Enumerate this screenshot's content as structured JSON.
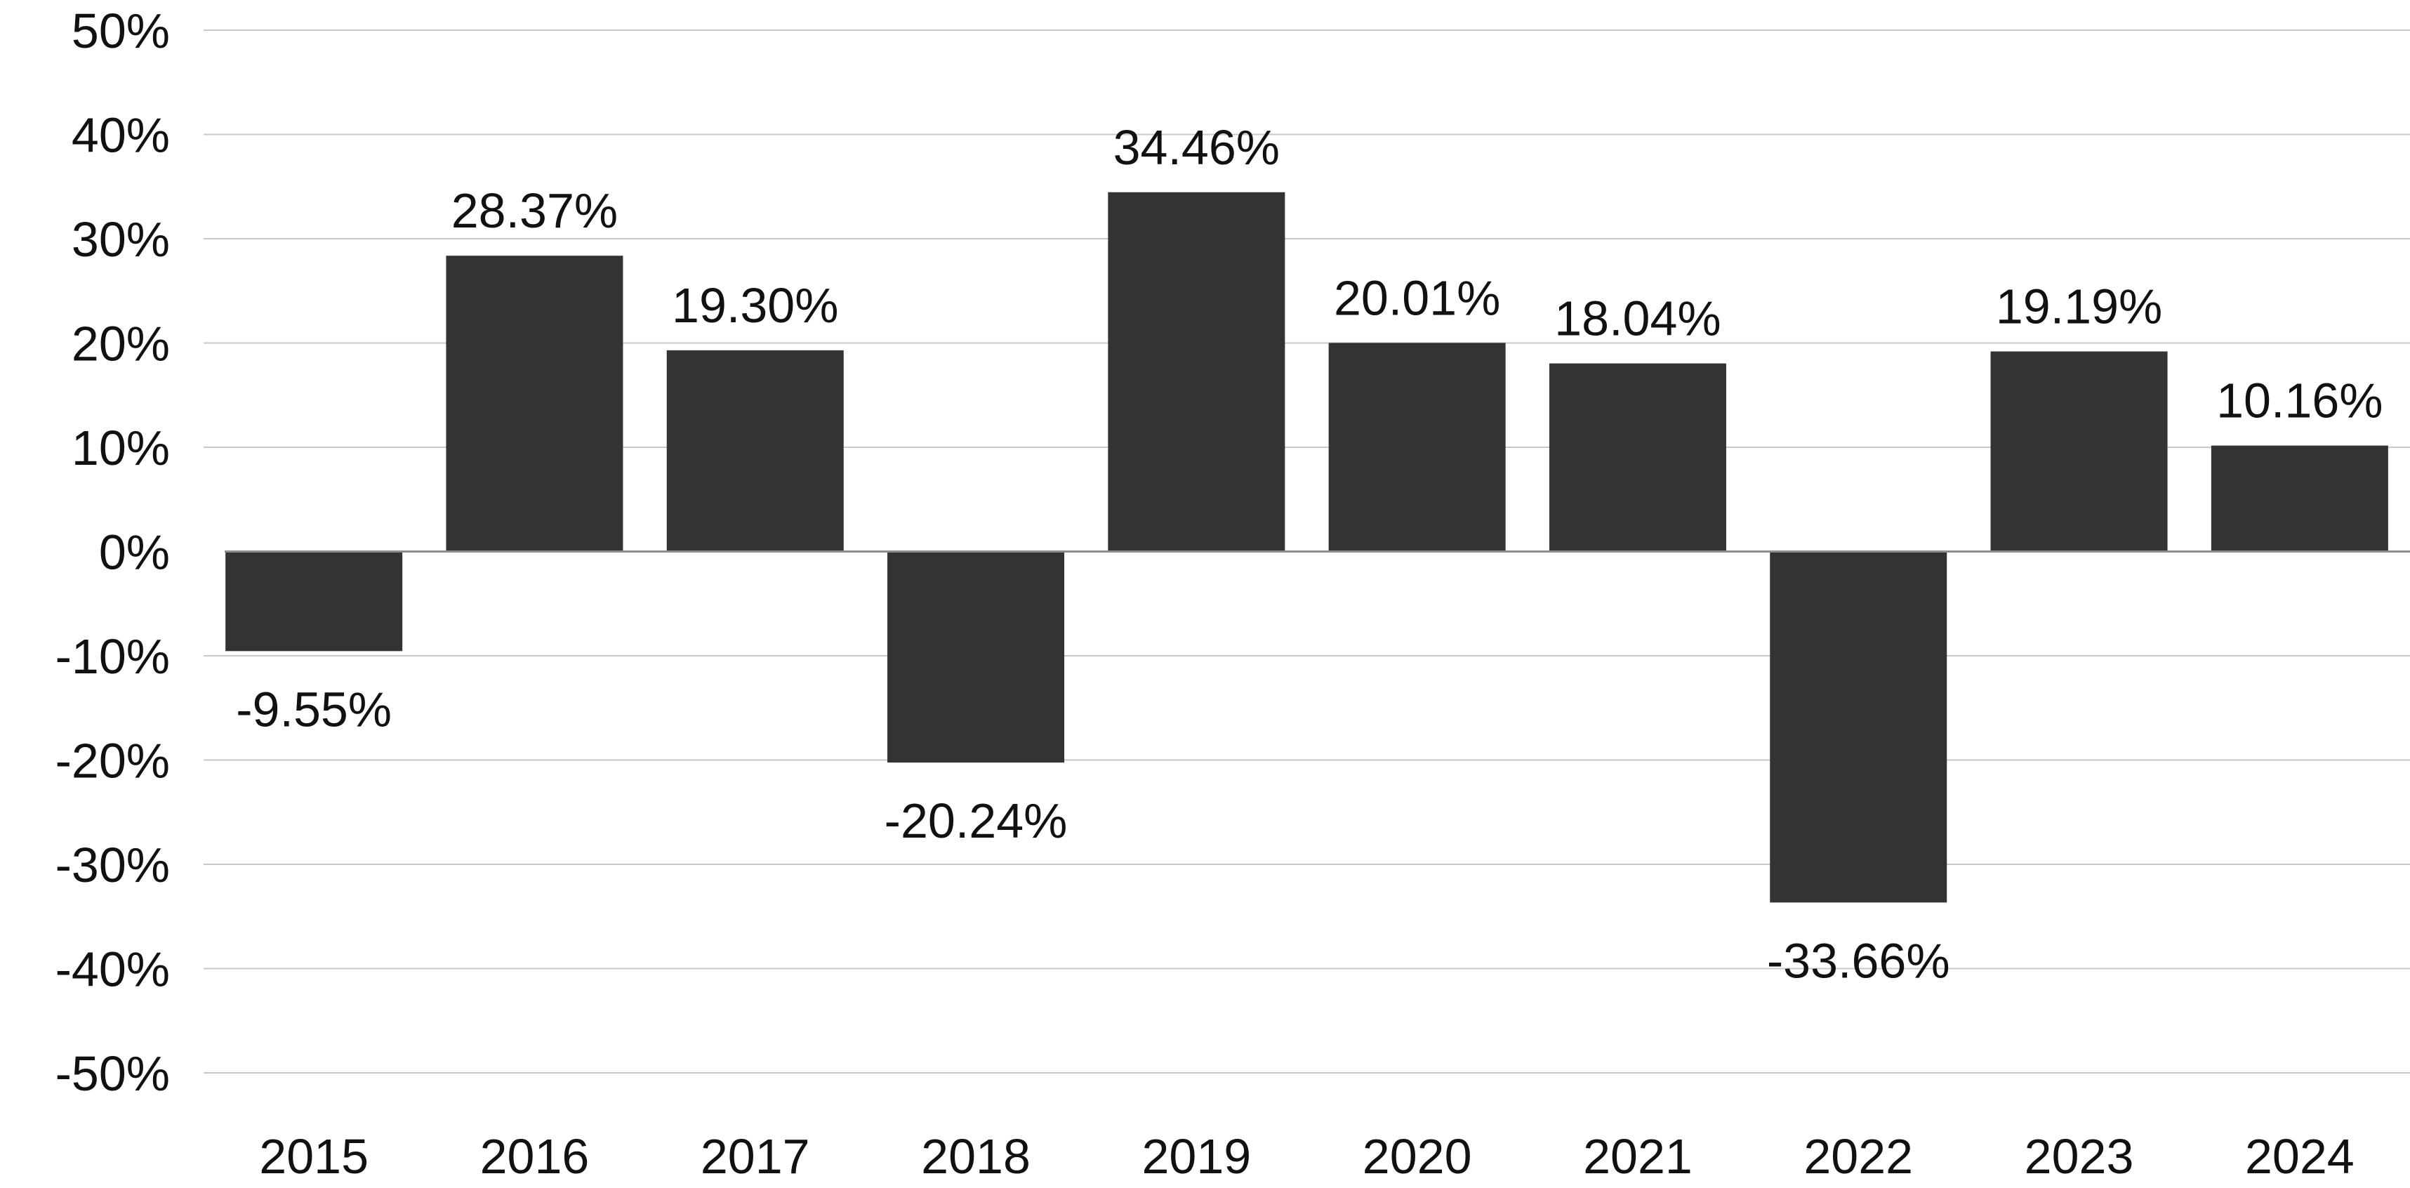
{
  "chart_data": {
    "type": "bar",
    "title": "",
    "xlabel": "",
    "ylabel": "",
    "categories": [
      "2015",
      "2016",
      "2017",
      "2018",
      "2019",
      "2020",
      "2021",
      "2022",
      "2023",
      "2024"
    ],
    "values": [
      -9.55,
      28.37,
      19.3,
      -20.24,
      34.46,
      20.01,
      18.04,
      -33.66,
      19.19,
      10.16
    ],
    "data_labels": [
      "-9.55%",
      "28.37%",
      "19.30%",
      "-20.24%",
      "34.46%",
      "20.01%",
      "18.04%",
      "-33.66%",
      "19.19%",
      "10.16%"
    ],
    "ylim": [
      -50,
      50
    ],
    "yticks": [
      50,
      40,
      30,
      20,
      10,
      0,
      -10,
      -20,
      -30,
      -40,
      -50
    ],
    "ytick_labels": [
      "50%",
      "40%",
      "30%",
      "20%",
      "10%",
      "0%",
      "-10%",
      "-20%",
      "-30%",
      "-40%",
      "-50%"
    ],
    "grid": true,
    "legend": "none",
    "colors": {
      "bar": "#333333",
      "gridline": "#c8c8c8",
      "zeroline": "#8c8c8c",
      "text": "#111111"
    }
  }
}
